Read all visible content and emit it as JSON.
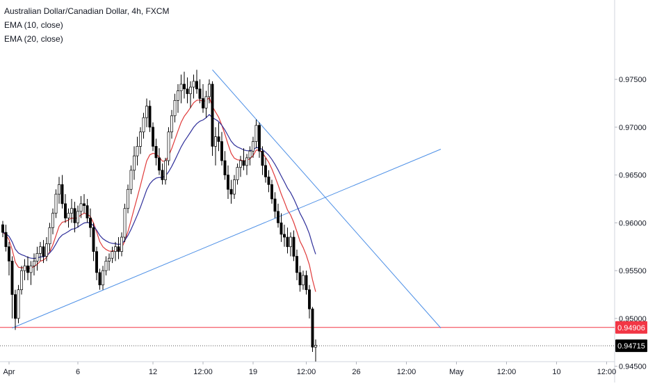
{
  "chart_data": {
    "type": "candlestick",
    "title": "Australian Dollar/Canadian Dollar, 4h, FXCM",
    "indicators": [
      "EMA (10, close)",
      "EMA (20, close)"
    ],
    "y_ticks": [
      "0.97500",
      "0.97000",
      "0.96500",
      "0.96000",
      "0.95500",
      "0.95000",
      "0.94500"
    ],
    "y_range": [
      0.9433,
      0.9833
    ],
    "x_ticks": [
      "Apr",
      "6",
      "12",
      "12:00",
      "19",
      "12:00",
      "26",
      "12:00",
      "May",
      "12:00",
      "10",
      "12:00"
    ],
    "price_labels": {
      "level": "0.94906",
      "last": "0.94715"
    },
    "level_price": 0.94906,
    "last_price": 0.94715,
    "colors": {
      "level_line": "#f23645",
      "trendline": "#4c8fe6",
      "ema10": "#e03a3a",
      "ema20": "#2f2f9a",
      "candle_up": "#ffffff",
      "candle_down": "#000000"
    },
    "trendlines": [
      {
        "from_idx": 3,
        "from_price": 0.949,
        "to_idx": 140,
        "to_price": 0.9677
      },
      {
        "from_idx": 67,
        "from_price": 0.976,
        "to_idx": 140,
        "to_price": 0.949
      }
    ],
    "candles": [
      [
        0.9598,
        0.9602,
        0.9585,
        0.959
      ],
      [
        0.959,
        0.9598,
        0.957,
        0.9575
      ],
      [
        0.9575,
        0.958,
        0.9545,
        0.956
      ],
      [
        0.956,
        0.9565,
        0.95,
        0.9525
      ],
      [
        0.9525,
        0.953,
        0.9488,
        0.95
      ],
      [
        0.95,
        0.9535,
        0.9495,
        0.953
      ],
      [
        0.953,
        0.9555,
        0.9525,
        0.955
      ],
      [
        0.955,
        0.9562,
        0.954,
        0.9555
      ],
      [
        0.9555,
        0.9565,
        0.954,
        0.9548
      ],
      [
        0.9548,
        0.956,
        0.9535,
        0.9555
      ],
      [
        0.9555,
        0.9568,
        0.9545,
        0.956
      ],
      [
        0.956,
        0.9575,
        0.955,
        0.9568
      ],
      [
        0.9568,
        0.958,
        0.956,
        0.9575
      ],
      [
        0.9575,
        0.9582,
        0.9558,
        0.9565
      ],
      [
        0.9565,
        0.9585,
        0.956,
        0.9578
      ],
      [
        0.9578,
        0.96,
        0.957,
        0.9595
      ],
      [
        0.9595,
        0.9615,
        0.9588,
        0.961
      ],
      [
        0.961,
        0.9635,
        0.9605,
        0.963
      ],
      [
        0.963,
        0.9648,
        0.962,
        0.964
      ],
      [
        0.964,
        0.965,
        0.9615,
        0.962
      ],
      [
        0.962,
        0.963,
        0.96,
        0.9605
      ],
      [
        0.9605,
        0.9615,
        0.9595,
        0.961
      ],
      [
        0.961,
        0.9625,
        0.96,
        0.9615
      ],
      [
        0.9615,
        0.9622,
        0.959,
        0.96
      ],
      [
        0.96,
        0.9618,
        0.9595,
        0.9612
      ],
      [
        0.9612,
        0.9628,
        0.9605,
        0.962
      ],
      [
        0.962,
        0.963,
        0.961,
        0.9618
      ],
      [
        0.9618,
        0.9625,
        0.96,
        0.9605
      ],
      [
        0.9605,
        0.9615,
        0.9585,
        0.9595
      ],
      [
        0.9595,
        0.96,
        0.956,
        0.957
      ],
      [
        0.957,
        0.9575,
        0.954,
        0.9548
      ],
      [
        0.9548,
        0.9552,
        0.953,
        0.9535
      ],
      [
        0.9535,
        0.9555,
        0.953,
        0.955
      ],
      [
        0.955,
        0.9565,
        0.9545,
        0.956
      ],
      [
        0.956,
        0.9568,
        0.955,
        0.9563
      ],
      [
        0.9563,
        0.9575,
        0.9558,
        0.957
      ],
      [
        0.957,
        0.958,
        0.956,
        0.9575
      ],
      [
        0.9575,
        0.9585,
        0.9562,
        0.957
      ],
      [
        0.957,
        0.959,
        0.9565,
        0.9585
      ],
      [
        0.9585,
        0.962,
        0.958,
        0.9615
      ],
      [
        0.9615,
        0.964,
        0.961,
        0.9635
      ],
      [
        0.9635,
        0.966,
        0.963,
        0.9655
      ],
      [
        0.9655,
        0.968,
        0.9645,
        0.967
      ],
      [
        0.967,
        0.969,
        0.966,
        0.968
      ],
      [
        0.968,
        0.97,
        0.9672,
        0.9695
      ],
      [
        0.9695,
        0.9715,
        0.9688,
        0.971
      ],
      [
        0.971,
        0.973,
        0.97,
        0.9722
      ],
      [
        0.9722,
        0.9728,
        0.9695,
        0.97
      ],
      [
        0.97,
        0.9705,
        0.9675,
        0.968
      ],
      [
        0.968,
        0.9688,
        0.966,
        0.9668
      ],
      [
        0.9668,
        0.9678,
        0.965,
        0.9655
      ],
      [
        0.9655,
        0.9662,
        0.964,
        0.9645
      ],
      [
        0.9645,
        0.9668,
        0.964,
        0.9665
      ],
      [
        0.9665,
        0.97,
        0.966,
        0.9695
      ],
      [
        0.9695,
        0.9718,
        0.9688,
        0.9712
      ],
      [
        0.9712,
        0.9735,
        0.9705,
        0.9728
      ],
      [
        0.9728,
        0.9745,
        0.9715,
        0.9738
      ],
      [
        0.9738,
        0.9755,
        0.9725,
        0.9745
      ],
      [
        0.9745,
        0.9758,
        0.973,
        0.974
      ],
      [
        0.974,
        0.9752,
        0.9725,
        0.9735
      ],
      [
        0.9735,
        0.9748,
        0.972,
        0.9742
      ],
      [
        0.9742,
        0.9755,
        0.973,
        0.9748
      ],
      [
        0.9748,
        0.976,
        0.9735,
        0.974
      ],
      [
        0.974,
        0.975,
        0.9725,
        0.973
      ],
      [
        0.973,
        0.9745,
        0.9715,
        0.972
      ],
      [
        0.972,
        0.9738,
        0.971,
        0.9732
      ],
      [
        0.9732,
        0.975,
        0.9725,
        0.9745
      ],
      [
        0.9745,
        0.9748,
        0.967,
        0.968
      ],
      [
        0.968,
        0.97,
        0.966,
        0.969
      ],
      [
        0.969,
        0.9705,
        0.9675,
        0.9685
      ],
      [
        0.9685,
        0.9695,
        0.966,
        0.9665
      ],
      [
        0.9665,
        0.9675,
        0.9645,
        0.965
      ],
      [
        0.965,
        0.966,
        0.9625,
        0.9635
      ],
      [
        0.9635,
        0.9645,
        0.962,
        0.963
      ],
      [
        0.963,
        0.965,
        0.9625,
        0.9645
      ],
      [
        0.9645,
        0.9662,
        0.964,
        0.9658
      ],
      [
        0.9658,
        0.967,
        0.9648,
        0.9665
      ],
      [
        0.9665,
        0.9678,
        0.9655,
        0.966
      ],
      [
        0.966,
        0.9672,
        0.965,
        0.9668
      ],
      [
        0.9668,
        0.968,
        0.966,
        0.9675
      ],
      [
        0.9675,
        0.969,
        0.9668,
        0.9685
      ],
      [
        0.9685,
        0.9708,
        0.9678,
        0.9702
      ],
      [
        0.9702,
        0.9705,
        0.9668,
        0.9675
      ],
      [
        0.9675,
        0.968,
        0.965,
        0.966
      ],
      [
        0.966,
        0.9668,
        0.9642,
        0.9648
      ],
      [
        0.9648,
        0.9655,
        0.9632,
        0.964
      ],
      [
        0.964,
        0.9645,
        0.962,
        0.9625
      ],
      [
        0.9625,
        0.9632,
        0.9605,
        0.9612
      ],
      [
        0.9612,
        0.962,
        0.9595,
        0.96
      ],
      [
        0.96,
        0.961,
        0.958,
        0.9588
      ],
      [
        0.9588,
        0.9598,
        0.9575,
        0.9585
      ],
      [
        0.9585,
        0.9595,
        0.9568,
        0.9575
      ],
      [
        0.9575,
        0.959,
        0.9565,
        0.9585
      ],
      [
        0.9585,
        0.9592,
        0.956,
        0.9565
      ],
      [
        0.9565,
        0.9572,
        0.954,
        0.9548
      ],
      [
        0.9548,
        0.9555,
        0.9528,
        0.9535
      ],
      [
        0.9535,
        0.955,
        0.953,
        0.9545
      ],
      [
        0.9545,
        0.955,
        0.9525,
        0.953
      ],
      [
        0.953,
        0.9535,
        0.95,
        0.951
      ],
      [
        0.951,
        0.9512,
        0.9465,
        0.947
      ],
      [
        0.947,
        0.9478,
        0.9455,
        0.9472
      ]
    ]
  }
}
